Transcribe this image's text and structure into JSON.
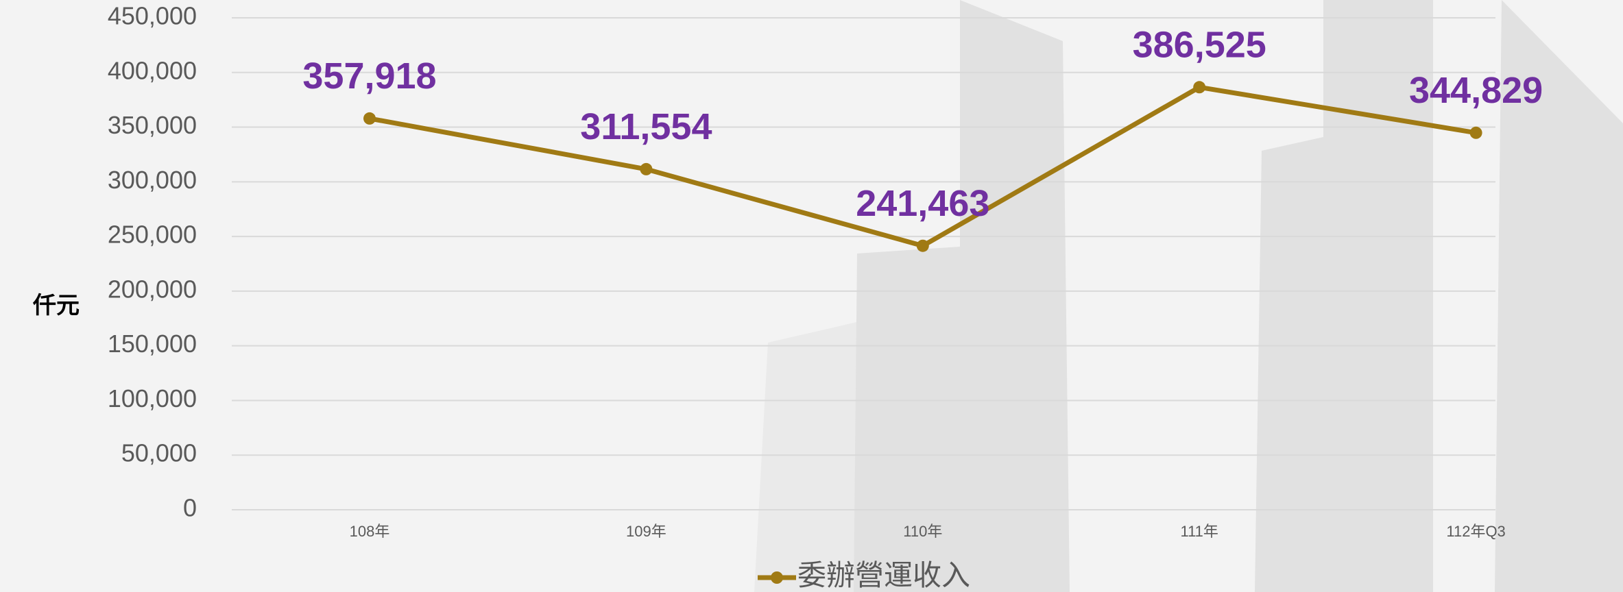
{
  "chart_data": {
    "type": "line",
    "y_axis_label": "仟元",
    "categories": [
      "108年",
      "109年",
      "110年",
      "111年",
      "112年Q3"
    ],
    "series": [
      {
        "name": "委辦營運收入",
        "color": "#a07a14",
        "values": [
          357918,
          311554,
          241463,
          386525,
          344829
        ],
        "value_labels": [
          "357,918",
          "311,554",
          "241,463",
          "386,525",
          "344,829"
        ]
      }
    ],
    "label_color": "#7030a0",
    "ylim": [
      0,
      450000
    ],
    "yticks": [
      0,
      {
        "value": 50000,
        "label": "50,000"
      },
      {
        "value": 100000,
        "label": "100,000"
      },
      {
        "value": 150000,
        "label": "150,000"
      },
      {
        "value": 200000,
        "label": "200,000"
      },
      {
        "value": 250000,
        "label": "250,000"
      },
      {
        "value": 300000,
        "label": "300,000"
      },
      {
        "value": 350000,
        "label": "350,000"
      },
      {
        "value": 400000,
        "label": "400,000"
      },
      {
        "value": 450000,
        "label": "450,000"
      }
    ],
    "grid": true,
    "legend": "bottom"
  }
}
